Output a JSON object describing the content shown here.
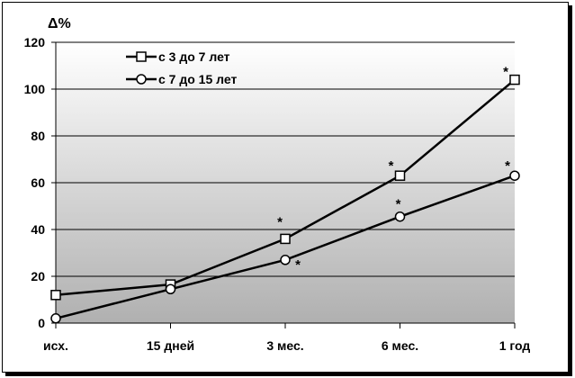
{
  "chart_data": {
    "type": "line",
    "ylabel": "Δ%",
    "categories": [
      "исх.",
      "15 дней",
      "3 мес.",
      "6 мес.",
      "1 год"
    ],
    "ylim": [
      0,
      120
    ],
    "yticks": [
      0,
      20,
      40,
      60,
      80,
      100,
      120
    ],
    "grid": true,
    "legend_position": "top-left",
    "series": [
      {
        "name": "с 3 до 7 лет",
        "marker": "square",
        "values": [
          12,
          16.5,
          36,
          63,
          104
        ],
        "annotations": [
          "",
          "",
          "*",
          "*",
          "*"
        ]
      },
      {
        "name": "с 7 до 15 лет",
        "marker": "circle",
        "values": [
          2,
          14.5,
          27,
          45.5,
          63
        ],
        "annotations": [
          "",
          "",
          "*",
          "*",
          "*"
        ]
      }
    ],
    "colors": {
      "line": "#000000",
      "marker_fill": "#ffffff",
      "plot_bg_top": "#ffffff",
      "plot_bg_bottom": "#b0b0b0"
    }
  }
}
